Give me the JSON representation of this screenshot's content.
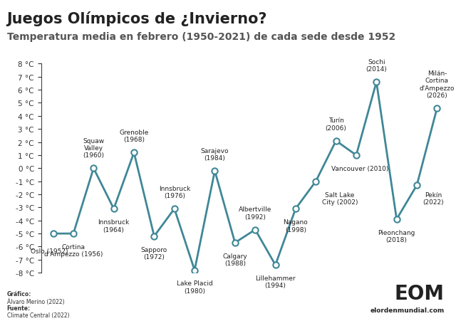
{
  "chart_data": {
    "type": "line",
    "title": "Juegos Olímpicos de ¿Invierno?",
    "subtitle": "Temperatura media en febrero (1950-2021) de cada sede desde 1952",
    "categories": [
      "Oslo (1952)",
      "Cortina\nd'Ampezzo (1956)",
      "Squaw\nValley\n(1960)",
      "Innsbruck\n(1964)",
      "Grenoble\n(1968)",
      "Sapporo\n(1972)",
      "Innsbruck\n(1976)",
      "Lake Placid\n(1980)",
      "Sarajevo\n(1984)",
      "Calgary\n(1988)",
      "Albertville\n(1992)",
      "Lillehammer\n(1994)",
      "Nagano\n(1998)",
      "Salt Lake\nCity (2002)",
      "Turín\n(2006)",
      "Vancouver (2010)",
      "Sochi\n(2014)",
      "Pieonchang\n(2018)",
      "Pekín\n(2022)",
      "Milán-\nCortina\nd'Ampezzo\n(2026)"
    ],
    "values": [
      -5,
      -5,
      0,
      -3.1,
      1.2,
      -5.2,
      -3.1,
      -7.8,
      -0.2,
      -5.7,
      -4.7,
      -7.4,
      -3.1,
      -1,
      2.1,
      1.0,
      6.6,
      -3.9,
      -1.3,
      4.6
    ],
    "color": "#3f8796",
    "marker": "o",
    "line_style": "solid",
    "ylim": [
      -8,
      8
    ],
    "yticks": [
      {
        "value": -8,
        "label": "-8 °C"
      },
      {
        "value": -7,
        "label": "-7 °C"
      },
      {
        "value": -6,
        "label": "-6 °C"
      },
      {
        "value": -5,
        "label": "-5 °C"
      },
      {
        "value": -4,
        "label": "-4 °C"
      },
      {
        "value": -3,
        "label": "-3 °C"
      },
      {
        "value": -2,
        "label": "-2 °C"
      },
      {
        "value": -1,
        "label": "-1 °C"
      },
      {
        "value": 0,
        "label": "0 °C"
      },
      {
        "value": 1,
        "label": "1 °C"
      },
      {
        "value": 2,
        "label": "2 °C"
      },
      {
        "value": 3,
        "label": "3 °C"
      },
      {
        "value": 4,
        "label": "4 °C"
      },
      {
        "value": 5,
        "label": "5 °C"
      },
      {
        "value": 6,
        "label": "6 °C"
      },
      {
        "value": 7,
        "label": "7 °C"
      },
      {
        "value": 8,
        "label": "8 °C"
      }
    ],
    "grid": false,
    "tick_labels": "y",
    "credits": [
      "Gráfico:",
      "Álvaro Merino (2022)",
      "Fuente:",
      "Climate Central (2022)"
    ],
    "logo": "EOM",
    "website": "elordenmundial.com"
  }
}
